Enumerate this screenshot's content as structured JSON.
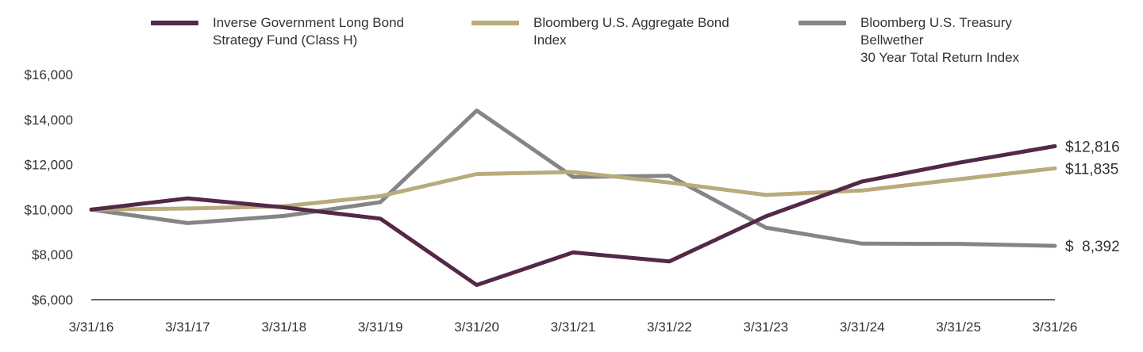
{
  "chart_data": {
    "type": "line",
    "categories": [
      "3/31/16",
      "3/31/17",
      "3/31/18",
      "3/31/19",
      "3/31/20",
      "3/31/21",
      "3/31/22",
      "3/31/23",
      "3/31/24",
      "3/31/25",
      "3/31/26"
    ],
    "y_tick_labels": [
      "$6,000",
      "$8,000",
      "$10,000",
      "$12,000",
      "$14,000",
      "$16,000"
    ],
    "y_ticks": [
      6000,
      8000,
      10000,
      12000,
      14000,
      16000
    ],
    "ylim": [
      6000,
      16000
    ],
    "grid": false,
    "legend_position": "top",
    "series": [
      {
        "name": "Inverse Government Long Bond Strategy Fund (Class H)",
        "color": "#532848",
        "values": [
          10000,
          10500,
          10100,
          9600,
          6650,
          8100,
          7700,
          9700,
          11250,
          12080,
          12816
        ],
        "end_label": "$12,816"
      },
      {
        "name": "Bloomberg U.S. Aggregate Bond Index",
        "color": "#b9ab7c",
        "values": [
          10000,
          10050,
          10150,
          10600,
          11580,
          11670,
          11200,
          10650,
          10850,
          11350,
          11835
        ],
        "end_label": "$11,835"
      },
      {
        "name": "Bloomberg U.S. Treasury Bellwether 30 Year Total Return Index",
        "color": "#858587",
        "values": [
          10000,
          9400,
          9720,
          10330,
          14400,
          11450,
          11500,
          9200,
          8490,
          8480,
          8392
        ],
        "end_label": "$  8,392"
      }
    ]
  },
  "legend": {
    "items": [
      {
        "line1": "Inverse Government Long Bond",
        "line2": "Strategy Fund (Class H)",
        "color": "#532848"
      },
      {
        "line1": "Bloomberg U.S. Aggregate Bond",
        "line2": "Index",
        "color": "#b9ab7c"
      },
      {
        "line1": "Bloomberg U.S. Treasury Bellwether",
        "line2": "30 Year Total Return Index",
        "color": "#858587"
      }
    ]
  }
}
